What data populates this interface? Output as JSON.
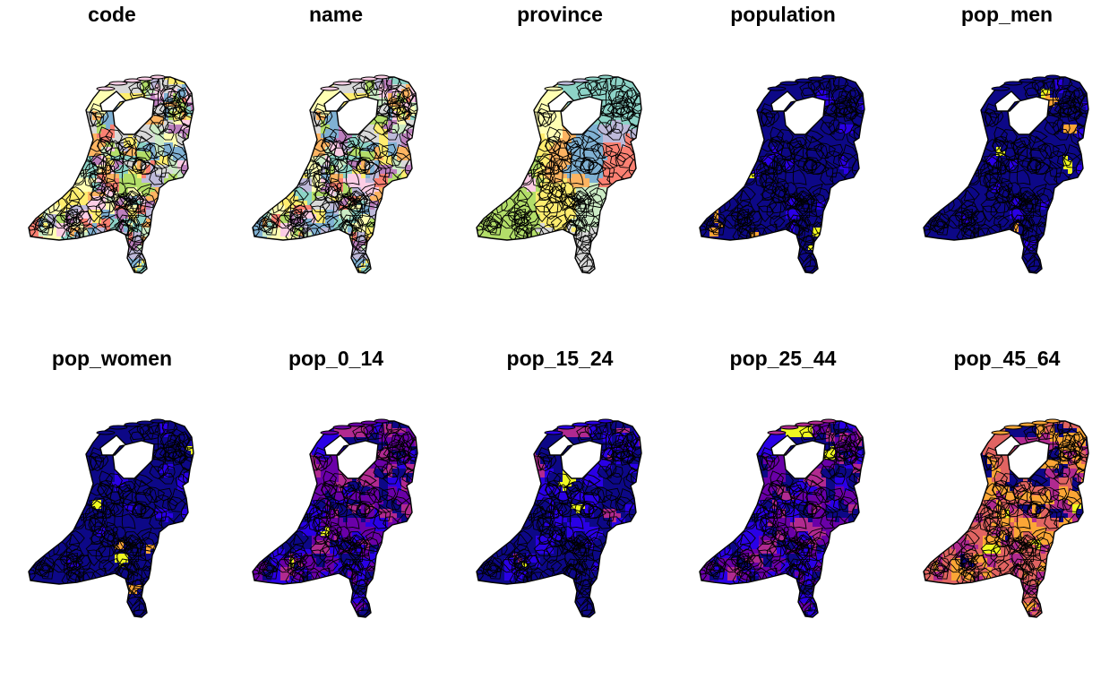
{
  "panels": [
    {
      "title": "code",
      "palette": "categorical"
    },
    {
      "title": "name",
      "palette": "categorical"
    },
    {
      "title": "province",
      "palette": "province"
    },
    {
      "title": "population",
      "palette": "plasma-low"
    },
    {
      "title": "pop_men",
      "palette": "plasma-low"
    },
    {
      "title": "pop_women",
      "palette": "plasma-low"
    },
    {
      "title": "pop_0_14",
      "palette": "plasma-mid"
    },
    {
      "title": "pop_15_24",
      "palette": "plasma-blue"
    },
    {
      "title": "pop_25_44",
      "palette": "plasma-mid"
    },
    {
      "title": "pop_45_64",
      "palette": "plasma-high"
    }
  ],
  "colors": {
    "categorical": [
      "#8dd3c7",
      "#ffffb3",
      "#bebada",
      "#fb8072",
      "#80b1d3",
      "#fdb462",
      "#b3de69",
      "#fccde5",
      "#d9d9d9",
      "#bc80bd",
      "#ccebc5",
      "#ffed6f"
    ],
    "plasma": [
      "#0d0887",
      "#2a00e6",
      "#6a00a8",
      "#b12a90",
      "#e16462",
      "#fca636",
      "#f0f921"
    ],
    "border": "#000000",
    "background": "#ffffff"
  }
}
